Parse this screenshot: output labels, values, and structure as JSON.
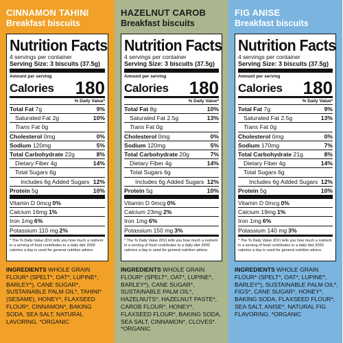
{
  "panels": [
    {
      "flavor": "CINNAMON TAHINI",
      "subtitle": "Breakfast biscuits",
      "bg": "#f1a128",
      "nf_title": "Nutrition Facts",
      "servings": "4 servings per container",
      "serving_size_label": "Serving Size: 3 biscuits (37.5g)",
      "amount_per": "Amount per serving",
      "calories_label": "Calories",
      "calories": "180",
      "dv_header": "% Daily Value*",
      "total_fat": "Total Fat 7g",
      "total_fat_pct": "9%",
      "sat_fat": "Saturated Fat 2g",
      "sat_fat_pct": "10%",
      "trans_fat": "Trans Fat 0g",
      "cholesterol": "Cholesterol 0mg",
      "cholesterol_pct": "0%",
      "sodium": "Sodium 120mg",
      "sodium_pct": "5%",
      "carb": "Total Carbohydrate 22g",
      "carb_pct": "8%",
      "fiber": "Dietary Fiber 4g",
      "fiber_pct": "14%",
      "sugars": "Total Sugars 6g",
      "added_sugars": "Includes 6g Added Sugars",
      "added_sugars_pct": "12%",
      "protein": "Protein 5g",
      "protein_pct": "10%",
      "vit_d": "Vitamin D 0mcg",
      "vit_d_pct": "0%",
      "calcium": "Calcium 16mg",
      "calcium_pct": "1%",
      "iron": "Iron 1mg",
      "iron_pct": "6%",
      "potassium": "Potassium 110 mg",
      "potassium_pct": "2%",
      "footnote": "* The % Daily Value (DV) tells you how much a nutrient in a serving of food contributes to a daily diet 2000 calories a day is used for general nutrition advice.",
      "ingredients_label": "INGREDIENTS",
      "ingredients": "WHOLE GRAIN FLOUR* (SPELT*, OAT*, LUPINE*, BARLEY*), CANE SUGAR*, SUSTAINABLE PALM OIL*, TAHINI*(SESAME), HONEY*, FLAXSEED FLOUR*, CINNAMON*, BAKING SODA, SEA SALT, NATURAL LAVORING. *ORGANIC"
    },
    {
      "flavor": "HAZELNUT CAROB",
      "subtitle": "Breakfast biscuits",
      "bg": "#a9b68e",
      "nf_title": "Nutrition Facts",
      "servings": "4 servings per container",
      "serving_size_label": "Serving Size: 3 biscuits (37.5g)",
      "amount_per": "Amount per serving",
      "calories_label": "Calories",
      "calories": "180",
      "dv_header": "% Daily Value*",
      "total_fat": "Total Fat 8g",
      "total_fat_pct": "10%",
      "sat_fat": "Saturated Fat 2.5g",
      "sat_fat_pct": "13%",
      "trans_fat": "Trans Fat 0g",
      "cholesterol": "Cholesterol 0mg",
      "cholesterol_pct": "0%",
      "sodium": "Sodium 120mg",
      "sodium_pct": "5%",
      "carb": "Total Carbohydrate 20g",
      "carb_pct": "7%",
      "fiber": "Dietary Fiber 4g",
      "fiber_pct": "14%",
      "sugars": "Total Sugars 6g",
      "added_sugars": "Includes 6g Added Sugars",
      "added_sugars_pct": "12%",
      "protein": "Protein 5g",
      "protein_pct": "10%",
      "vit_d": "Vitamin D 0mcg",
      "vit_d_pct": "0%",
      "calcium": "Calcium 23mg",
      "calcium_pct": "2%",
      "iron": "Iron 1mg",
      "iron_pct": "6%",
      "potassium": "Potassium 150 mg",
      "potassium_pct": "3%",
      "footnote": "* The % Daily Value (DV) tells you how much a nutrient in a serving of food contributes to a daily diet 2000 calories a day is used for general nutrition advice.",
      "ingredients_label": "INGREDIENTS",
      "ingredients": "WHOLE GRAIN FLOUR* (SPELT*, OAT*, LUPINE*, BARLEY*), CANE SUGAR*, SUSTAINABLE PALM OIL*, HAZELNUTS*, HAZELNUT PASTE*, CAROB FLOUR*, HONEY*, FLAXSEED FLOUR*, BAKING SODA, SEA SALT, CINNAMON*, CLOVES*. *ORGANIC"
    },
    {
      "flavor": "FIG ANISE",
      "subtitle": "Breakfast biscuits",
      "bg": "#7ab4df",
      "nf_title": "Nutrition Facts",
      "servings": "4 servings per container",
      "serving_size_label": "Serving Size: 3 biscuits (37.5g)",
      "amount_per": "Amount per serving",
      "calories_label": "Calories",
      "calories": "180",
      "dv_header": "% Daily Value*",
      "total_fat": "Total Fat 7g",
      "total_fat_pct": "9%",
      "sat_fat": "Saturated Fat 2.5g",
      "sat_fat_pct": "13%",
      "trans_fat": "Trans Fat 0g",
      "cholesterol": "Cholesterol 0mg",
      "cholesterol_pct": "0%",
      "sodium": "Sodium 170mg",
      "sodium_pct": "7%",
      "carb": "Total Carbohydrate 21g",
      "carb_pct": "8%",
      "fiber": "Dietary Fiber 4g",
      "fiber_pct": "14%",
      "sugars": "Total Sugars 6g",
      "added_sugars": "Includes 6g Added Sugars",
      "added_sugars_pct": "12%",
      "protein": "Protein 5g",
      "protein_pct": "10%",
      "vit_d": "Vitamin D 0mcg",
      "vit_d_pct": "0%",
      "calcium": "Calcium 19mg",
      "calcium_pct": "1%",
      "iron": "Iron 1mg",
      "iron_pct": "6%",
      "potassium": "Potassium 140 mg",
      "potassium_pct": "3%",
      "footnote": "* The % Daily Value (DV) tells you how much a nutrient in a serving of food contributes to a daily diet 2000 calories a day is used for general nutrition advice.",
      "ingredients_label": "INGREDIENTS",
      "ingredients": "WHOLE GRAIN FLOUR* (SPELT*, OAT*, LUPINE*, BARLEY*), SUSTAINABLE PALM OIL*, FIGS*, CANE SUGAR*, HONEY*, BAKING SODA, FLAXSEED FLOUR*, SEA SALT, ANISE*, NATURAL FIG FLAVORING. *ORGANIC"
    }
  ]
}
